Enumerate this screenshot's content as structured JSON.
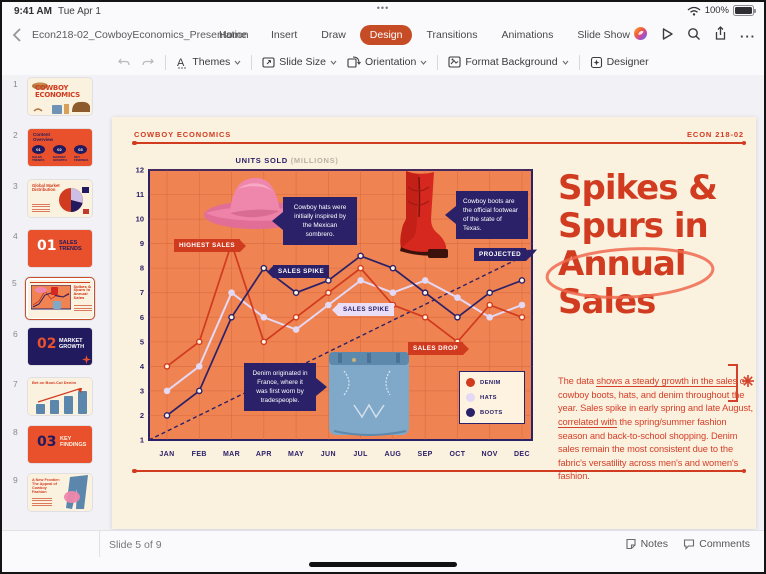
{
  "status_bar": {
    "time": "9:41 AM",
    "date": "Tue Apr 1",
    "battery_pct": "100%"
  },
  "titlebar": {
    "document_name": "Econ218-02_CowboyEconomics_Presentation",
    "tabs": [
      "Home",
      "Insert",
      "Draw",
      "Design",
      "Transitions",
      "Animations",
      "Slide Show"
    ],
    "active_tab": "Design"
  },
  "ribbon": {
    "themes": "Themes",
    "slide_size": "Slide Size",
    "orientation": "Orientation",
    "format_background": "Format Background",
    "designer": "Designer"
  },
  "sidebar": {
    "slides": [
      {
        "num": "1",
        "title_line1": "COWBOY",
        "title_line2": "ECONOMICS"
      },
      {
        "num": "2",
        "title": "Content Overview",
        "nums": [
          "01",
          "02",
          "03"
        ],
        "items": [
          "SALES TRENDS",
          "MARKET GROWTH",
          "KEY FINDINGS"
        ]
      },
      {
        "num": "3",
        "title": "Global Market Distribution"
      },
      {
        "num": "4",
        "badge": "01",
        "title": "SALES TRENDS"
      },
      {
        "num": "5",
        "title": "Spikes & Spurs in Annual Sales"
      },
      {
        "num": "6",
        "badge": "02",
        "title": "MARKET GROWTH"
      },
      {
        "num": "7",
        "title": "Bet on Boot-Cut Denim"
      },
      {
        "num": "8",
        "badge": "03",
        "title": "KEY FINDINGS"
      },
      {
        "num": "9",
        "title": "A New Frontier: The Appeal of Cowboy Fashion"
      }
    ]
  },
  "slide": {
    "eyebrow_left": "COWBOY ECONOMICS",
    "eyebrow_right": "ECON 218-02",
    "chart_heading": "UNITS SOLD",
    "chart_heading_note": "(MILLIONS)",
    "title_lines": [
      "Spikes &",
      "Spurs in",
      "Annual",
      "Sales"
    ],
    "callout_hats": "Cowboy hats were initially inspired by the Mexican sombrero.",
    "callout_boots": "Cowboy boots are the official footwear of the state of Texas.",
    "callout_denim": "Denim originated in France, where it was first worn by tradespeople.",
    "body_segments": [
      {
        "text": "The data "
      },
      {
        "text": "shows a steady growth in the sales",
        "underline": true
      },
      {
        "text": " of cowboy boots, hats, and denim throughout the year. Sales spike in early spring and late August, "
      },
      {
        "text": "correlated with",
        "underline": true
      },
      {
        "text": " the spring/summer fashion season and back-to-school shopping. Denim sales remain the most consistent due to the fabric's versatility across men's and women's fashion."
      }
    ]
  },
  "chart_data": {
    "type": "line",
    "title": "UNITS SOLD (MILLIONS)",
    "categories": [
      "JAN",
      "FEB",
      "MAR",
      "APR",
      "MAY",
      "JUN",
      "JUL",
      "AUG",
      "SEP",
      "OCT",
      "NOV",
      "DEC"
    ],
    "series": [
      {
        "name": "DENIM",
        "color": "#d03b1f",
        "values": [
          4,
          5,
          9,
          5,
          6,
          7,
          8,
          6.5,
          6,
          5,
          6.5,
          6
        ]
      },
      {
        "name": "HATS",
        "color": "#e3d9f5",
        "values": [
          3,
          4,
          7,
          6,
          5.5,
          6.5,
          7.5,
          7,
          7.5,
          6.8,
          6,
          6.5
        ]
      },
      {
        "name": "BOOTS",
        "color": "#2b2168",
        "values": [
          2,
          3,
          6,
          8,
          7,
          7.5,
          8.5,
          8,
          7,
          6,
          7,
          7.5
        ]
      }
    ],
    "projection": {
      "name": "PROJECTED",
      "style": "dashed",
      "color": "#2b2168",
      "start_value": 1,
      "end_value": 8.6
    },
    "ylim": [
      1,
      12
    ],
    "yticks": [
      1,
      2,
      3,
      4,
      5,
      6,
      7,
      8,
      9,
      10,
      11,
      12
    ],
    "grid": true,
    "plot_bg": "#f08352",
    "legend_position": "bottom-right",
    "annotations": [
      {
        "text": "HIGHEST SALES",
        "series": "DENIM",
        "month": "MAR",
        "value": 9
      },
      {
        "text": "SALES SPIKE",
        "series": "BOOTS",
        "month": "APR",
        "value": 8
      },
      {
        "text": "SALES SPIKE",
        "series": "HATS",
        "month": "JUN",
        "value": 6.5
      },
      {
        "text": "SALES DROP",
        "series": "DENIM",
        "month": "OCT",
        "value": 5
      },
      {
        "text": "PROJECTED",
        "series": "PROJECTED",
        "month": "DEC",
        "value": 8.6
      }
    ]
  },
  "footer": {
    "slide_label": "Slide 5 of 9",
    "notes": "Notes",
    "comments": "Comments"
  }
}
